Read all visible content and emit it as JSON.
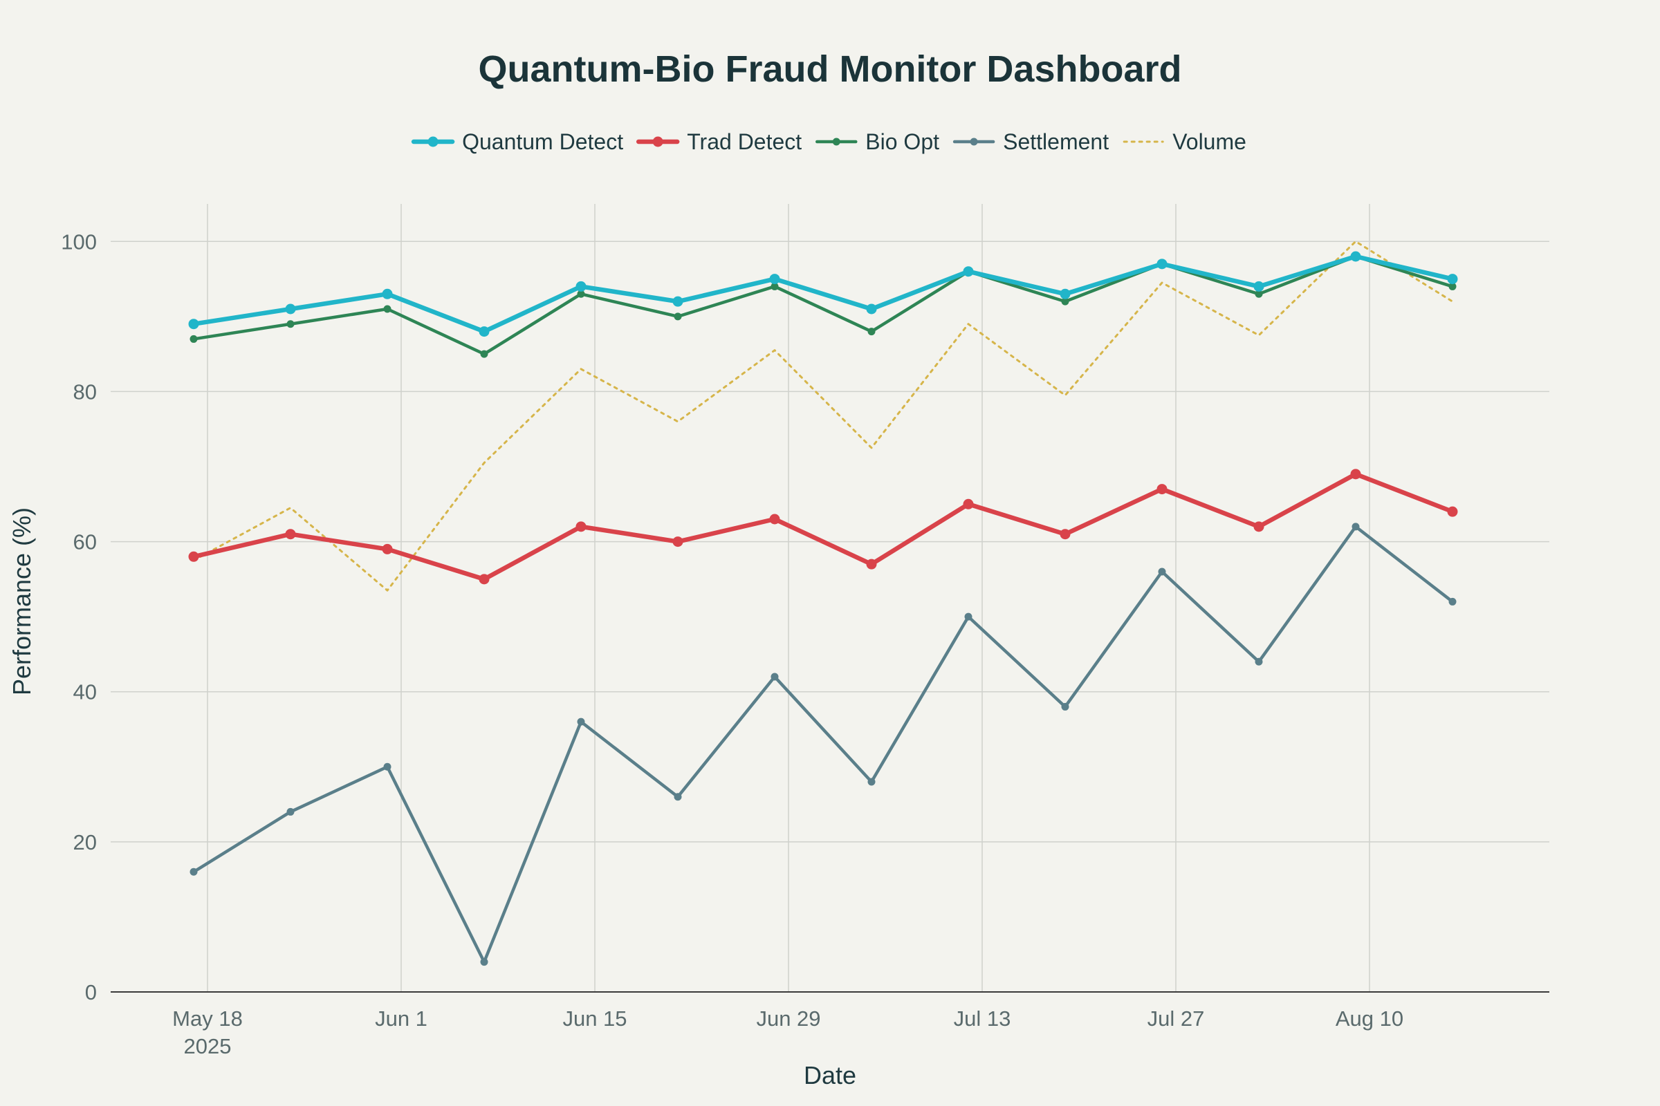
{
  "chart_data": {
    "type": "line",
    "title": "Quantum-Bio Fraud Monitor Dashboard",
    "xlabel": "Date",
    "ylabel": "Performance (%)",
    "ylim": [
      0,
      105
    ],
    "yticks": [
      0,
      20,
      40,
      60,
      80,
      100
    ],
    "xtick_labels": [
      {
        "date": "2025-05-18",
        "label": "May 18",
        "sublabel": "2025"
      },
      {
        "date": "2025-06-01",
        "label": "Jun 1"
      },
      {
        "date": "2025-06-15",
        "label": "Jun 15"
      },
      {
        "date": "2025-06-29",
        "label": "Jun 29"
      },
      {
        "date": "2025-07-13",
        "label": "Jul 13"
      },
      {
        "date": "2025-07-27",
        "label": "Jul 27"
      },
      {
        "date": "2025-08-10",
        "label": "Aug 10"
      }
    ],
    "xlim": [
      "2025-05-11",
      "2025-08-23"
    ],
    "x": [
      "2025-05-17",
      "2025-05-24",
      "2025-05-31",
      "2025-06-07",
      "2025-06-14",
      "2025-06-21",
      "2025-06-28",
      "2025-07-05",
      "2025-07-12",
      "2025-07-19",
      "2025-07-26",
      "2025-08-02",
      "2025-08-09",
      "2025-08-16"
    ],
    "grid": true,
    "legend_position": "top-center",
    "series": [
      {
        "name": "Quantum Detect",
        "color": "#21b5c9",
        "style": "solid",
        "width": "thick",
        "markers": true,
        "values": [
          89,
          91,
          93,
          88,
          94,
          92,
          95,
          91,
          96,
          93,
          97,
          94,
          98,
          95
        ]
      },
      {
        "name": "Trad Detect",
        "color": "#d9434a",
        "style": "solid",
        "width": "thick",
        "markers": true,
        "values": [
          58,
          61,
          59,
          55,
          62,
          60,
          63,
          57,
          65,
          61,
          67,
          62,
          69,
          64
        ]
      },
      {
        "name": "Bio Opt",
        "color": "#2e8555",
        "style": "solid",
        "width": "medium",
        "markers": true,
        "values": [
          87,
          89,
          91,
          85,
          93,
          90,
          94,
          88,
          96,
          92,
          97,
          93,
          98,
          94
        ]
      },
      {
        "name": "Settlement",
        "color": "#5a7f8a",
        "style": "solid",
        "width": "medium",
        "markers": true,
        "values": [
          16,
          24,
          30,
          4,
          36,
          26,
          42,
          28,
          50,
          38,
          56,
          44,
          62,
          52
        ]
      },
      {
        "name": "Volume",
        "color": "#d6b54a",
        "style": "dotted",
        "width": "thin",
        "markers": false,
        "values": [
          57.5,
          64.5,
          53.5,
          70.5,
          83,
          76,
          85.5,
          72.5,
          89,
          79.5,
          94.5,
          87.5,
          100,
          92
        ]
      }
    ]
  }
}
